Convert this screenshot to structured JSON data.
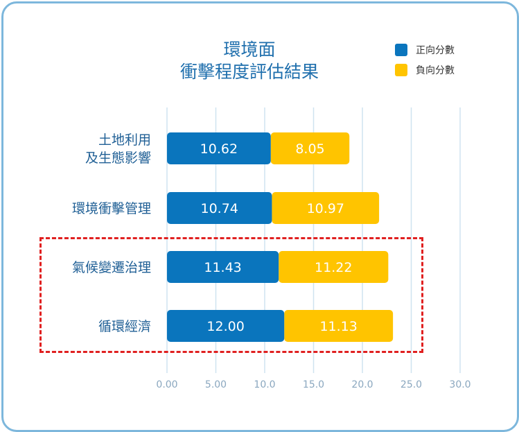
{
  "chart_data": {
    "type": "bar",
    "orientation": "horizontal",
    "stacked": true,
    "title_lines": [
      "環境面",
      "衝擊程度評估結果"
    ],
    "categories": [
      [
        "土地利用",
        "及生態影響"
      ],
      [
        "環境衝擊管理"
      ],
      [
        "氣候變遷治理"
      ],
      [
        "循環經濟"
      ]
    ],
    "series": [
      {
        "name": "正向分數",
        "color": "#0a75bd",
        "values": [
          10.62,
          10.74,
          11.43,
          12.0
        ],
        "labels": [
          "10.62",
          "10.74",
          "11.43",
          "12.00"
        ]
      },
      {
        "name": "負向分數",
        "color": "#ffc400",
        "values": [
          8.05,
          10.97,
          11.22,
          11.13
        ],
        "labels": [
          "8.05",
          "10.97",
          "11.22",
          "11.13"
        ]
      }
    ],
    "xlim": [
      0,
      30
    ],
    "xticks": [
      "0.00",
      "5.00",
      "10.0",
      "15.0",
      "20.0",
      "25.0",
      "30.0"
    ],
    "grid": true,
    "legend": "top-right",
    "highlight_categories": [
      "氣候變遷治理",
      "循環經濟"
    ]
  }
}
